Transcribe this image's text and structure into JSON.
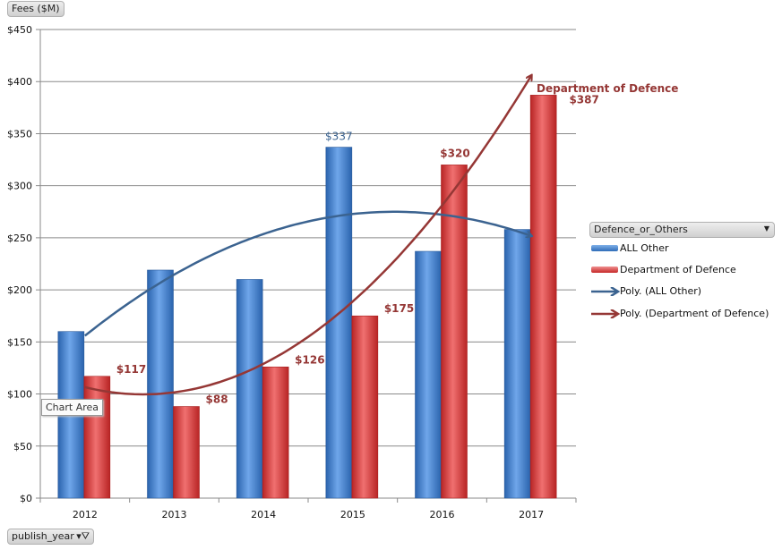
{
  "chart_data": {
    "type": "bar",
    "title": "",
    "ylabel": "Fees ($M)",
    "xlabel": "publish_year",
    "ylim": [
      0,
      450
    ],
    "yticks": [
      0,
      50,
      100,
      150,
      200,
      250,
      300,
      350,
      400,
      450
    ],
    "ytick_labels": [
      "$0",
      "$50",
      "$100",
      "$150",
      "$200",
      "$250",
      "$300",
      "$350",
      "$400",
      "$450"
    ],
    "categories": [
      "2012",
      "2013",
      "2014",
      "2015",
      "2016",
      "2017"
    ],
    "grid": true,
    "legend_position": "right",
    "legend_title": "Defence_or_Others",
    "series": [
      {
        "name": "ALL Other",
        "values": [
          160,
          219,
          210,
          337,
          237,
          258
        ],
        "color": "#3a78c9",
        "data_labels": [
          "",
          "",
          "",
          "$337",
          "",
          ""
        ]
      },
      {
        "name": "Department of Defence",
        "values": [
          117,
          88,
          126,
          175,
          320,
          387
        ],
        "color": "#d83b3b",
        "data_labels": [
          "$117",
          "$88",
          "$126",
          "$175",
          "$320",
          "$387"
        ]
      }
    ],
    "trendlines": [
      {
        "name": "Poly. (ALL Other)",
        "type": "polynomial",
        "order": 2,
        "color": "#3b6390"
      },
      {
        "name": "Poly. (Department of Defence)",
        "type": "polynomial",
        "order": 2,
        "color": "#953735"
      }
    ],
    "annotations": [
      "Department of Defence"
    ]
  },
  "ui": {
    "fees_button": "Fees ($M)",
    "year_button": "publish_year",
    "legend_button": "Defence_or_Others",
    "tooltip": "Chart Area",
    "filter_icon": "filter-icon",
    "dropdown_icon": "chevron-down-icon"
  }
}
